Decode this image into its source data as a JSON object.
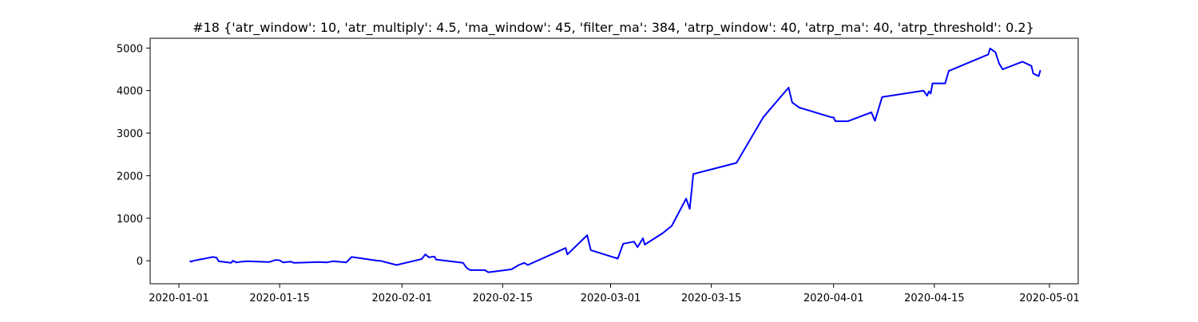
{
  "chart_data": {
    "type": "line",
    "title": "#18 {'atr_window': 10, 'atr_multiply': 4.5, 'ma_window': 45, 'filter_ma': 384, 'atrp_window': 40, 'atrp_ma': 40, 'atrp_threshold': 0.2}",
    "xlabel": "",
    "ylabel": "",
    "x_range": [
      "2019-12-28",
      "2020-05-05"
    ],
    "ylim": [
      -540,
      5230
    ],
    "grid": false,
    "x_ticks": [
      {
        "label": "2020-01-01",
        "date": "2020-01-01"
      },
      {
        "label": "2020-01-15",
        "date": "2020-01-15"
      },
      {
        "label": "2020-02-01",
        "date": "2020-02-01"
      },
      {
        "label": "2020-02-15",
        "date": "2020-02-15"
      },
      {
        "label": "2020-03-01",
        "date": "2020-03-01"
      },
      {
        "label": "2020-03-15",
        "date": "2020-03-15"
      },
      {
        "label": "2020-04-01",
        "date": "2020-04-01"
      },
      {
        "label": "2020-04-15",
        "date": "2020-04-15"
      },
      {
        "label": "2020-05-01",
        "date": "2020-05-01"
      }
    ],
    "y_ticks": [
      {
        "label": "0",
        "value": 0
      },
      {
        "label": "1000",
        "value": 1000
      },
      {
        "label": "2000",
        "value": 2000
      },
      {
        "label": "3000",
        "value": 3000
      },
      {
        "label": "4000",
        "value": 4000
      },
      {
        "label": "5000",
        "value": 5000
      }
    ],
    "series": [
      {
        "color": "#0000ff",
        "points": [
          [
            "2020-01-02 12:00",
            0
          ],
          [
            "2020-01-02 18:00",
            -25
          ],
          [
            "2020-01-03",
            0
          ],
          [
            "2020-01-05 18:00",
            90
          ],
          [
            "2020-01-06 06:00",
            70
          ],
          [
            "2020-01-06 12:00",
            -10
          ],
          [
            "2020-01-08 06:00",
            -50
          ],
          [
            "2020-01-08 12:00",
            0
          ],
          [
            "2020-01-09",
            -40
          ],
          [
            "2020-01-09 18:00",
            -20
          ],
          [
            "2020-01-10 12:00",
            -10
          ],
          [
            "2020-01-13 12:00",
            -30
          ],
          [
            "2020-01-14 12:00",
            20
          ],
          [
            "2020-01-15",
            10
          ],
          [
            "2020-01-15 12:00",
            -40
          ],
          [
            "2020-01-16 12:00",
            -20
          ],
          [
            "2020-01-17",
            -50
          ],
          [
            "2020-01-20 12:00",
            -30
          ],
          [
            "2020-01-21 12:00",
            -40
          ],
          [
            "2020-01-22 12:00",
            -10
          ],
          [
            "2020-01-24 06:00",
            -40
          ],
          [
            "2020-01-25",
            90
          ],
          [
            "2020-01-28 18:00",
            0
          ],
          [
            "2020-01-29",
            0
          ],
          [
            "2020-01-31 06:00",
            -100
          ],
          [
            "2020-02-03 18:00",
            40
          ],
          [
            "2020-02-04 06:00",
            150
          ],
          [
            "2020-02-04 18:00",
            80
          ],
          [
            "2020-02-05 12:00",
            100
          ],
          [
            "2020-02-05 18:00",
            30
          ],
          [
            "2020-02-09 12:00",
            -50
          ],
          [
            "2020-02-10",
            -170
          ],
          [
            "2020-02-10 12:00",
            -220
          ],
          [
            "2020-02-12 12:00",
            -220
          ],
          [
            "2020-02-13",
            -270
          ],
          [
            "2020-02-16 06:00",
            -200
          ],
          [
            "2020-02-17 06:00",
            -100
          ],
          [
            "2020-02-18",
            -50
          ],
          [
            "2020-02-18 12:00",
            -100
          ],
          [
            "2020-02-23 18:00",
            300
          ],
          [
            "2020-02-24",
            150
          ],
          [
            "2020-02-26 18:00",
            600
          ],
          [
            "2020-02-27 06:00",
            250
          ],
          [
            "2020-03-02",
            50
          ],
          [
            "2020-03-02 18:00",
            400
          ],
          [
            "2020-03-04 06:00",
            450
          ],
          [
            "2020-03-04 18:00",
            320
          ],
          [
            "2020-03-05 12:00",
            530
          ],
          [
            "2020-03-05 18:00",
            380
          ],
          [
            "2020-03-08 06:00",
            650
          ],
          [
            "2020-03-09 12:00",
            820
          ],
          [
            "2020-03-11 12:00",
            1460
          ],
          [
            "2020-03-12",
            1220
          ],
          [
            "2020-03-12 12:00",
            2040
          ],
          [
            "2020-03-18 12:00",
            2300
          ],
          [
            "2020-03-22 06:00",
            3380
          ],
          [
            "2020-03-25 18:00",
            4070
          ],
          [
            "2020-03-26 06:00",
            3720
          ],
          [
            "2020-03-27 06:00",
            3600
          ],
          [
            "2020-03-31 18:00",
            3370
          ],
          [
            "2020-04-01",
            3370
          ],
          [
            "2020-04-01 06:00",
            3280
          ],
          [
            "2020-04-03",
            3280
          ],
          [
            "2020-04-06 06:00",
            3490
          ],
          [
            "2020-04-06 18:00",
            3290
          ],
          [
            "2020-04-07 18:00",
            3850
          ],
          [
            "2020-04-13 12:00",
            4000
          ],
          [
            "2020-04-14",
            3880
          ],
          [
            "2020-04-14 06:00",
            3980
          ],
          [
            "2020-04-14 12:00",
            3930
          ],
          [
            "2020-04-14 18:00",
            4170
          ],
          [
            "2020-04-16 12:00",
            4170
          ],
          [
            "2020-04-17",
            4460
          ],
          [
            "2020-04-22 12:00",
            4850
          ],
          [
            "2020-04-22 18:00",
            4990
          ],
          [
            "2020-04-23 12:00",
            4900
          ],
          [
            "2020-04-24",
            4640
          ],
          [
            "2020-04-24 12:00",
            4500
          ],
          [
            "2020-04-27 06:00",
            4680
          ],
          [
            "2020-04-28 12:00",
            4580
          ],
          [
            "2020-04-28 18:00",
            4400
          ],
          [
            "2020-04-29 12:00",
            4340
          ],
          [
            "2020-04-29 18:00",
            4480
          ]
        ]
      }
    ]
  }
}
